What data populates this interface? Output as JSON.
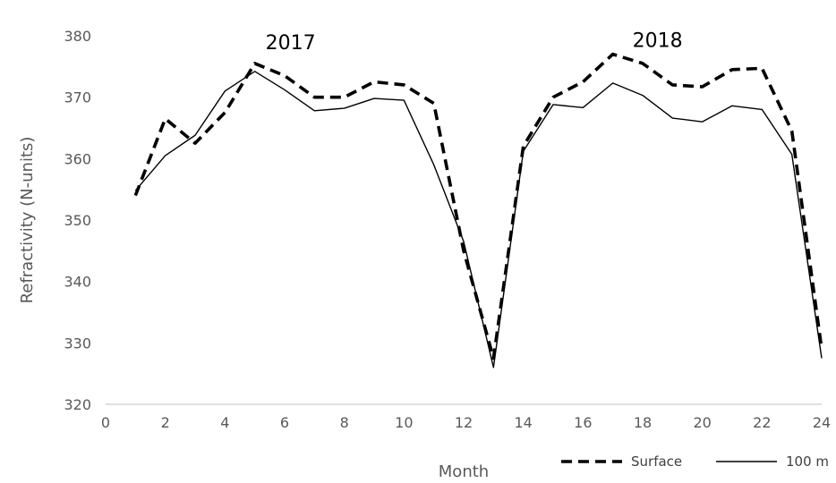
{
  "chart_data": {
    "type": "line",
    "title": "",
    "xlabel": "Month",
    "ylabel": "Refractivity (N-units)",
    "xlim": [
      0,
      24
    ],
    "ylim": [
      320,
      380
    ],
    "xticks": [
      0,
      2,
      4,
      6,
      8,
      10,
      12,
      14,
      16,
      18,
      20,
      22,
      24
    ],
    "yticks": [
      320,
      330,
      340,
      350,
      360,
      370,
      380
    ],
    "grid": false,
    "legend_position": "bottom-right",
    "x": [
      1,
      2,
      3,
      4,
      5,
      6,
      7,
      8,
      9,
      10,
      11,
      12,
      13,
      14,
      15,
      16,
      17,
      18,
      19,
      20,
      21,
      22,
      23,
      24
    ],
    "series": [
      {
        "name": "Surface",
        "style": "dashed",
        "color": "#000000",
        "values": [
          354,
          366.5,
          362.5,
          367.5,
          375.5,
          373.5,
          370,
          370,
          372.5,
          372,
          369,
          345,
          327.5,
          362,
          370,
          372.5,
          377,
          375.5,
          372,
          371.7,
          374.5,
          374.7,
          364.5,
          329
        ]
      },
      {
        "name": "100 m",
        "style": "solid",
        "color": "#000000",
        "values": [
          354.8,
          360.5,
          363.8,
          371,
          374.2,
          371.2,
          367.8,
          368.2,
          369.8,
          369.5,
          359,
          346.5,
          326,
          361.2,
          368.8,
          368.3,
          372.3,
          370.3,
          366.6,
          366,
          368.6,
          368,
          360.7,
          327.5
        ]
      }
    ],
    "annotations": [
      {
        "text": "2017",
        "x": 6.2,
        "y": 377.8
      },
      {
        "text": "2018",
        "x": 18.5,
        "y": 378.2
      }
    ]
  }
}
